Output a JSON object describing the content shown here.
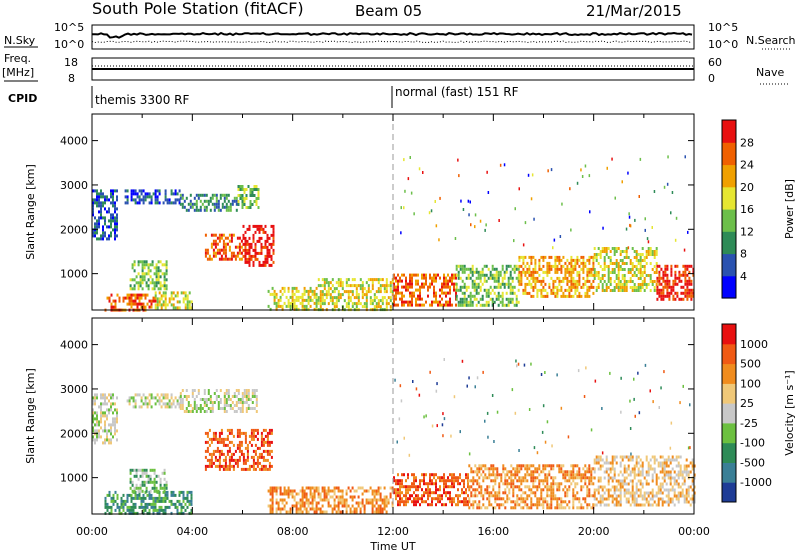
{
  "header": {
    "title": "South Pole Station (fitACF)",
    "beam": "Beam 05",
    "date": "21/Mar/2015"
  },
  "status_panels": {
    "nsky_label": "N.Sky",
    "nsearch_label": "N.Search",
    "nsky_ticks": [
      "10^5",
      "10^0"
    ],
    "freq_label_1": "Freq.",
    "freq_label_2": "[MHz]",
    "freq_ticks": [
      "18",
      "8"
    ],
    "nave_label": "Nave",
    "nave_ticks": [
      "60",
      "0"
    ],
    "cpid_label": "CPID",
    "cpid_modes": [
      {
        "label": "themis 3300 RF",
        "start_hour": 0
      },
      {
        "label": "normal (fast) 151 RF",
        "start_hour": 12
      }
    ]
  },
  "chart_data": [
    {
      "type": "heatmap",
      "name": "power",
      "xlabel": "Time UT",
      "ylabel": "Slant Range [km]",
      "xlim": [
        0,
        24
      ],
      "ylim": [
        180,
        4600
      ],
      "x_ticks": [
        "00:00",
        "04:00",
        "08:00",
        "12:00",
        "16:00",
        "20:00",
        "00:00"
      ],
      "y_ticks": [
        1000,
        2000,
        3000,
        4000
      ],
      "colorbar": {
        "label": "Power [dB]",
        "ticks": [
          4,
          8,
          12,
          16,
          20,
          24,
          28
        ],
        "colors": [
          "#0000ff",
          "#2a52b0",
          "#2e8b57",
          "#6cbf4a",
          "#e6e632",
          "#f0a000",
          "#f06000",
          "#e81010"
        ]
      },
      "echo_regions": [
        {
          "t": [
            0.0,
            1.0
          ],
          "r": [
            1800,
            2900
          ],
          "level": 1
        },
        {
          "t": [
            1.3,
            3.5
          ],
          "r": [
            2600,
            2900
          ],
          "level": 1
        },
        {
          "t": [
            3.5,
            5.8
          ],
          "r": [
            2450,
            2800
          ],
          "level": 2
        },
        {
          "t": [
            5.8,
            6.6
          ],
          "r": [
            2500,
            3000
          ],
          "level": 3
        },
        {
          "t": [
            0.5,
            2.5
          ],
          "r": [
            200,
            550
          ],
          "level": 6
        },
        {
          "t": [
            2.5,
            4.0
          ],
          "r": [
            200,
            600
          ],
          "level": 4
        },
        {
          "t": [
            1.5,
            3.0
          ],
          "r": [
            650,
            1300
          ],
          "level": 3
        },
        {
          "t": [
            4.5,
            6.0
          ],
          "r": [
            1300,
            1900
          ],
          "level": 6
        },
        {
          "t": [
            6.0,
            7.2
          ],
          "r": [
            1200,
            2100
          ],
          "level": 7
        },
        {
          "t": [
            7.0,
            9.0
          ],
          "r": [
            200,
            700
          ],
          "level": 4
        },
        {
          "t": [
            9.0,
            12.0
          ],
          "r": [
            200,
            900
          ],
          "level": 4
        },
        {
          "t": [
            12.0,
            14.5
          ],
          "r": [
            300,
            1000
          ],
          "level": 6
        },
        {
          "t": [
            14.5,
            17.0
          ],
          "r": [
            300,
            1200
          ],
          "level": 3
        },
        {
          "t": [
            17.0,
            20.0
          ],
          "r": [
            500,
            1400
          ],
          "level": 5
        },
        {
          "t": [
            20.0,
            22.5
          ],
          "r": [
            600,
            1600
          ],
          "level": 4
        },
        {
          "t": [
            22.5,
            24.0
          ],
          "r": [
            400,
            1200
          ],
          "level": 7
        }
      ]
    },
    {
      "type": "heatmap",
      "name": "velocity",
      "xlabel": "Time UT",
      "ylabel": "Slant Range [km]",
      "xlim": [
        0,
        24
      ],
      "ylim": [
        180,
        4600
      ],
      "x_ticks": [
        "00:00",
        "04:00",
        "08:00",
        "12:00",
        "16:00",
        "20:00",
        "00:00"
      ],
      "y_ticks": [
        1000,
        2000,
        3000,
        4000
      ],
      "colorbar": {
        "label": "Velocity [m s⁻¹]",
        "ticks": [
          1000,
          500,
          100,
          25,
          -25,
          -100,
          -500,
          -1000
        ],
        "colors": [
          "#1e3c96",
          "#3a7f96",
          "#2e8b57",
          "#6cc040",
          "#c8c8c8",
          "#f0c878",
          "#f08c1e",
          "#f05a14",
          "#e81010"
        ]
      },
      "echo_regions": [
        {
          "t": [
            0.0,
            1.0
          ],
          "r": [
            1800,
            2900
          ],
          "level": 4
        },
        {
          "t": [
            1.3,
            3.5
          ],
          "r": [
            2600,
            2900
          ],
          "level": 4
        },
        {
          "t": [
            3.5,
            6.6
          ],
          "r": [
            2500,
            3000
          ],
          "level": 4
        },
        {
          "t": [
            0.5,
            4.0
          ],
          "r": [
            200,
            700
          ],
          "level": 2
        },
        {
          "t": [
            1.5,
            3.0
          ],
          "r": [
            700,
            1200
          ],
          "level": 3
        },
        {
          "t": [
            4.5,
            7.2
          ],
          "r": [
            1200,
            2100
          ],
          "level": 7
        },
        {
          "t": [
            7.0,
            12.0
          ],
          "r": [
            200,
            800
          ],
          "level": 6
        },
        {
          "t": [
            12.0,
            15.0
          ],
          "r": [
            400,
            1100
          ],
          "level": 7
        },
        {
          "t": [
            15.0,
            20.0
          ],
          "r": [
            300,
            1300
          ],
          "level": 6
        },
        {
          "t": [
            20.0,
            24.0
          ],
          "r": [
            400,
            1500
          ],
          "level": 5
        }
      ]
    }
  ]
}
